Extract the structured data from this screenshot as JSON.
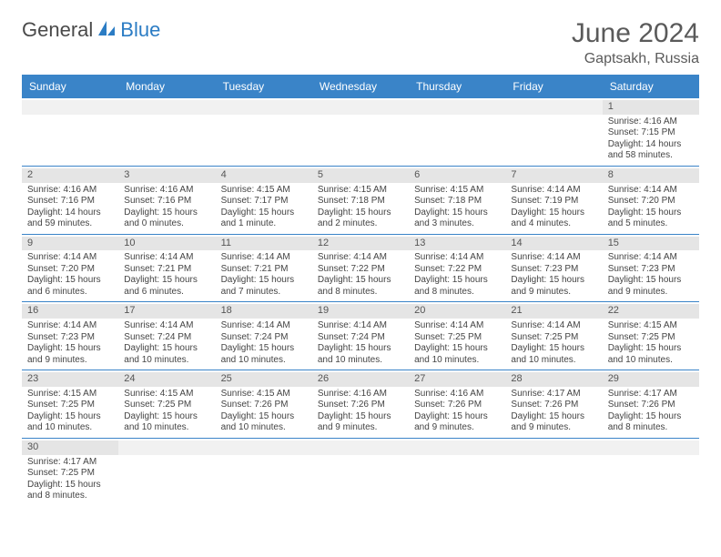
{
  "logo": {
    "part1": "General",
    "part2": "Blue"
  },
  "title": "June 2024",
  "location": "Gaptsakh, Russia",
  "colors": {
    "header_bg": "#3a84c8",
    "header_text": "#ffffff",
    "daynum_bg": "#e5e5e5",
    "border": "#3a84c8",
    "logo_blue": "#2b7cc4",
    "text": "#444444"
  },
  "dayNames": [
    "Sunday",
    "Monday",
    "Tuesday",
    "Wednesday",
    "Thursday",
    "Friday",
    "Saturday"
  ],
  "labels": {
    "sunrise": "Sunrise:",
    "sunset": "Sunset:",
    "daylight": "Daylight:"
  },
  "weeks": [
    [
      {
        "empty": true
      },
      {
        "empty": true
      },
      {
        "empty": true
      },
      {
        "empty": true
      },
      {
        "empty": true
      },
      {
        "empty": true
      },
      {
        "day": "1",
        "sunrise": "4:16 AM",
        "sunset": "7:15 PM",
        "daylight": "14 hours and 58 minutes."
      }
    ],
    [
      {
        "day": "2",
        "sunrise": "4:16 AM",
        "sunset": "7:16 PM",
        "daylight": "14 hours and 59 minutes."
      },
      {
        "day": "3",
        "sunrise": "4:16 AM",
        "sunset": "7:16 PM",
        "daylight": "15 hours and 0 minutes."
      },
      {
        "day": "4",
        "sunrise": "4:15 AM",
        "sunset": "7:17 PM",
        "daylight": "15 hours and 1 minute."
      },
      {
        "day": "5",
        "sunrise": "4:15 AM",
        "sunset": "7:18 PM",
        "daylight": "15 hours and 2 minutes."
      },
      {
        "day": "6",
        "sunrise": "4:15 AM",
        "sunset": "7:18 PM",
        "daylight": "15 hours and 3 minutes."
      },
      {
        "day": "7",
        "sunrise": "4:14 AM",
        "sunset": "7:19 PM",
        "daylight": "15 hours and 4 minutes."
      },
      {
        "day": "8",
        "sunrise": "4:14 AM",
        "sunset": "7:20 PM",
        "daylight": "15 hours and 5 minutes."
      }
    ],
    [
      {
        "day": "9",
        "sunrise": "4:14 AM",
        "sunset": "7:20 PM",
        "daylight": "15 hours and 6 minutes."
      },
      {
        "day": "10",
        "sunrise": "4:14 AM",
        "sunset": "7:21 PM",
        "daylight": "15 hours and 6 minutes."
      },
      {
        "day": "11",
        "sunrise": "4:14 AM",
        "sunset": "7:21 PM",
        "daylight": "15 hours and 7 minutes."
      },
      {
        "day": "12",
        "sunrise": "4:14 AM",
        "sunset": "7:22 PM",
        "daylight": "15 hours and 8 minutes."
      },
      {
        "day": "13",
        "sunrise": "4:14 AM",
        "sunset": "7:22 PM",
        "daylight": "15 hours and 8 minutes."
      },
      {
        "day": "14",
        "sunrise": "4:14 AM",
        "sunset": "7:23 PM",
        "daylight": "15 hours and 9 minutes."
      },
      {
        "day": "15",
        "sunrise": "4:14 AM",
        "sunset": "7:23 PM",
        "daylight": "15 hours and 9 minutes."
      }
    ],
    [
      {
        "day": "16",
        "sunrise": "4:14 AM",
        "sunset": "7:23 PM",
        "daylight": "15 hours and 9 minutes."
      },
      {
        "day": "17",
        "sunrise": "4:14 AM",
        "sunset": "7:24 PM",
        "daylight": "15 hours and 10 minutes."
      },
      {
        "day": "18",
        "sunrise": "4:14 AM",
        "sunset": "7:24 PM",
        "daylight": "15 hours and 10 minutes."
      },
      {
        "day": "19",
        "sunrise": "4:14 AM",
        "sunset": "7:24 PM",
        "daylight": "15 hours and 10 minutes."
      },
      {
        "day": "20",
        "sunrise": "4:14 AM",
        "sunset": "7:25 PM",
        "daylight": "15 hours and 10 minutes."
      },
      {
        "day": "21",
        "sunrise": "4:14 AM",
        "sunset": "7:25 PM",
        "daylight": "15 hours and 10 minutes."
      },
      {
        "day": "22",
        "sunrise": "4:15 AM",
        "sunset": "7:25 PM",
        "daylight": "15 hours and 10 minutes."
      }
    ],
    [
      {
        "day": "23",
        "sunrise": "4:15 AM",
        "sunset": "7:25 PM",
        "daylight": "15 hours and 10 minutes."
      },
      {
        "day": "24",
        "sunrise": "4:15 AM",
        "sunset": "7:25 PM",
        "daylight": "15 hours and 10 minutes."
      },
      {
        "day": "25",
        "sunrise": "4:15 AM",
        "sunset": "7:26 PM",
        "daylight": "15 hours and 10 minutes."
      },
      {
        "day": "26",
        "sunrise": "4:16 AM",
        "sunset": "7:26 PM",
        "daylight": "15 hours and 9 minutes."
      },
      {
        "day": "27",
        "sunrise": "4:16 AM",
        "sunset": "7:26 PM",
        "daylight": "15 hours and 9 minutes."
      },
      {
        "day": "28",
        "sunrise": "4:17 AM",
        "sunset": "7:26 PM",
        "daylight": "15 hours and 9 minutes."
      },
      {
        "day": "29",
        "sunrise": "4:17 AM",
        "sunset": "7:26 PM",
        "daylight": "15 hours and 8 minutes."
      }
    ],
    [
      {
        "day": "30",
        "sunrise": "4:17 AM",
        "sunset": "7:25 PM",
        "daylight": "15 hours and 8 minutes."
      },
      {
        "empty": true
      },
      {
        "empty": true
      },
      {
        "empty": true
      },
      {
        "empty": true
      },
      {
        "empty": true
      },
      {
        "empty": true
      }
    ]
  ]
}
